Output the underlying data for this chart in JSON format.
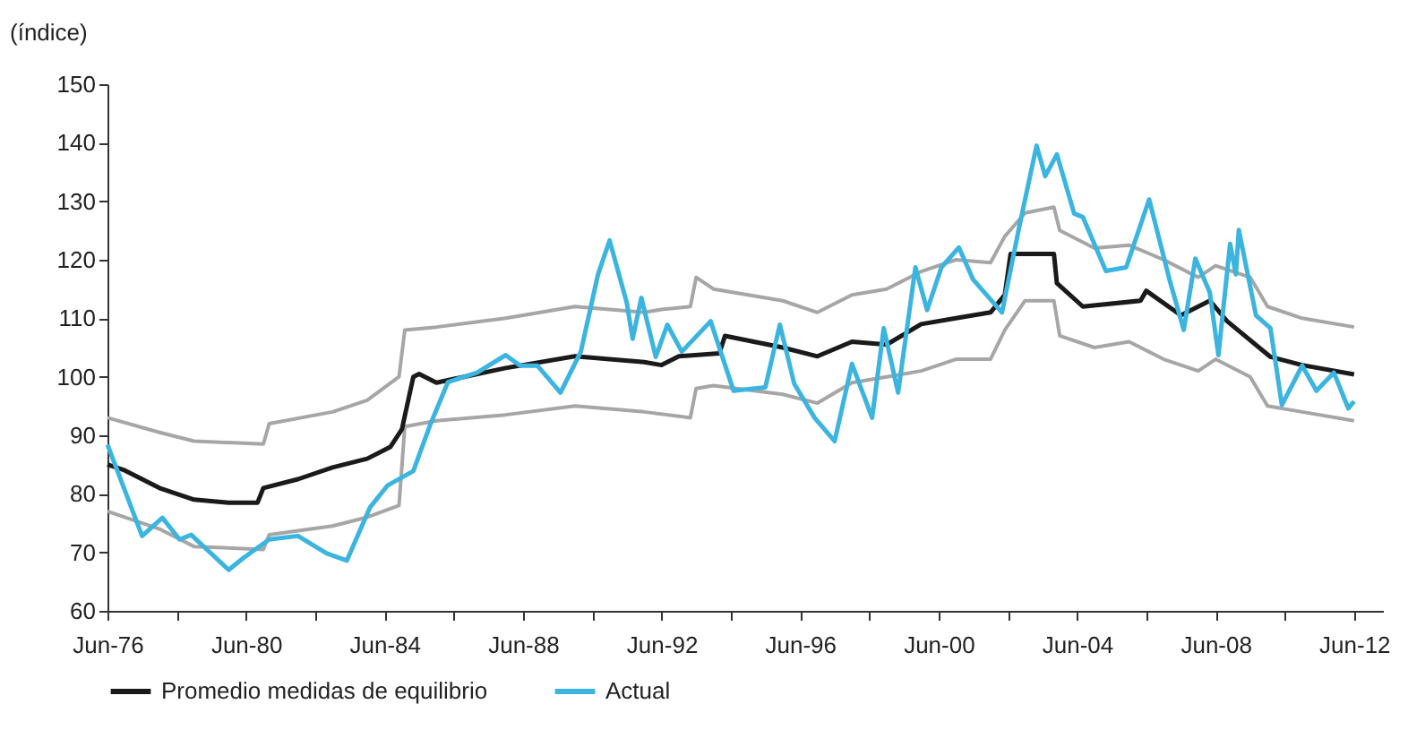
{
  "chart_data": {
    "type": "line",
    "ylabel": "(índice)",
    "xlim": [
      "1976-06",
      "2013-04"
    ],
    "ylim": [
      60,
      150
    ],
    "yticks": [
      60,
      70,
      80,
      90,
      100,
      110,
      120,
      130,
      140,
      150
    ],
    "xticks": [
      {
        "value": "1976-06",
        "label": "Jun-76"
      },
      {
        "value": "1978-06",
        "label": null
      },
      {
        "value": "1980-06",
        "label": "Jun-80"
      },
      {
        "value": "1982-06",
        "label": null
      },
      {
        "value": "1984-06",
        "label": "Jun-84"
      },
      {
        "value": "1986-06",
        "label": null
      },
      {
        "value": "1988-06",
        "label": "Jun-88"
      },
      {
        "value": "1990-06",
        "label": null
      },
      {
        "value": "1992-06",
        "label": "Jun-92"
      },
      {
        "value": "1994-06",
        "label": null
      },
      {
        "value": "1996-06",
        "label": "Jun-96"
      },
      {
        "value": "1998-06",
        "label": null
      },
      {
        "value": "2000-06",
        "label": "Jun-00"
      },
      {
        "value": "2002-06",
        "label": null
      },
      {
        "value": "2004-06",
        "label": "Jun-04"
      },
      {
        "value": "2006-06",
        "label": null
      },
      {
        "value": "2008-06",
        "label": "Jun-08"
      },
      {
        "value": "2010-06",
        "label": null
      },
      {
        "value": "2012-06",
        "label": "Jun-12"
      }
    ],
    "grid": false,
    "legend": "bottom",
    "line_style": "solid",
    "marker": "none",
    "series": [
      {
        "color": "#a6a6a6",
        "x": [
          "1976-06",
          "1977-12",
          "1978-12",
          "1980-12",
          "1981-02",
          "1982-12",
          "1983-12",
          "1984-11",
          "1985-01",
          "1985-12",
          "1987-12",
          "1989-12",
          "1991-12",
          "1992-06",
          "1993-04",
          "1993-06",
          "1993-12",
          "1995-12",
          "1996-12",
          "1997-12",
          "1998-12",
          "1999-12",
          "2000-12",
          "2001-12",
          "2002-05",
          "2002-12",
          "2003-10",
          "2003-12",
          "2004-12",
          "2005-12",
          "2006-12",
          "2007-12",
          "2008-06",
          "2009-06",
          "2009-12",
          "2010-12",
          "2012-06"
        ],
        "values": [
          93,
          90.5,
          89,
          88.5,
          92,
          94,
          96,
          100,
          108,
          108.5,
          110,
          112,
          111,
          111.5,
          112,
          117,
          115,
          113,
          111,
          114,
          115,
          118,
          120,
          119.5,
          124,
          128,
          129,
          125,
          122,
          122.5,
          120,
          117,
          119,
          117,
          112,
          110,
          108.5
        ]
      },
      {
        "color": "#a6a6a6",
        "x": [
          "1976-06",
          "1977-12",
          "1978-12",
          "1980-12",
          "1981-02",
          "1982-12",
          "1983-12",
          "1984-11",
          "1985-01",
          "1985-12",
          "1987-12",
          "1989-12",
          "1991-12",
          "1993-04",
          "1993-06",
          "1993-12",
          "1995-12",
          "1996-12",
          "1997-12",
          "1998-12",
          "1999-12",
          "2000-12",
          "2001-12",
          "2002-05",
          "2002-12",
          "2003-10",
          "2003-12",
          "2004-12",
          "2005-12",
          "2006-12",
          "2007-12",
          "2008-06",
          "2009-06",
          "2009-12",
          "2010-12",
          "2012-06"
        ],
        "values": [
          77,
          74,
          71,
          70.5,
          73,
          74.5,
          76,
          78,
          91.5,
          92.5,
          93.5,
          95,
          94,
          93,
          98,
          98.5,
          97,
          95.5,
          99,
          100,
          101,
          103,
          103,
          108,
          113,
          113,
          107,
          105,
          106,
          103,
          101,
          103,
          100,
          95,
          94,
          92.5
        ]
      },
      {
        "name": "Promedio medidas de equilibrio",
        "color": "#1a1a1a",
        "x": [
          "1976-06",
          "1976-12",
          "1977-12",
          "1978-12",
          "1979-12",
          "1980-10",
          "1980-12",
          "1981-12",
          "1982-12",
          "1983-12",
          "1984-08",
          "1984-12",
          "1985-04",
          "1985-06",
          "1985-12",
          "1987-12",
          "1989-12",
          "1991-12",
          "1992-06",
          "1992-12",
          "1994-02",
          "1994-04",
          "1995-12",
          "1996-12",
          "1997-12",
          "1998-12",
          "1999-12",
          "2000-12",
          "2001-12",
          "2002-05",
          "2002-07",
          "2003-10",
          "2003-11",
          "2004-08",
          "2006-04",
          "2006-06",
          "2007-06",
          "2008-04",
          "2008-10",
          "2010-01",
          "2010-12",
          "2012-06"
        ],
        "values": [
          85,
          84,
          81,
          79,
          78.5,
          78.5,
          81,
          82.5,
          84.5,
          86,
          88,
          91,
          100,
          100.5,
          99,
          101.5,
          103.5,
          102.5,
          102,
          103.5,
          104,
          107,
          105,
          103.5,
          106,
          105.5,
          109,
          110,
          111,
          114,
          121,
          121,
          116,
          112,
          113,
          114.7,
          110.5,
          113,
          109.5,
          103.4,
          102,
          100.4
        ]
      },
      {
        "name": "Actual",
        "color": "#3cb4e0",
        "x": [
          "1976-06",
          "1977-06",
          "1978-01",
          "1978-07",
          "1978-11",
          "1979-12",
          "1980-05",
          "1981-02",
          "1981-12",
          "1982-10",
          "1983-05",
          "1984-01",
          "1984-07",
          "1985-04",
          "1985-10",
          "1986-04",
          "1987-02",
          "1987-12",
          "1988-05",
          "1988-11",
          "1989-07",
          "1990-02",
          "1990-08",
          "1990-12",
          "1991-06",
          "1991-08",
          "1991-11",
          "1992-04",
          "1992-08",
          "1993-01",
          "1993-11",
          "1994-07",
          "1995-06",
          "1995-11",
          "1996-04",
          "1996-11",
          "1997-06",
          "1997-12",
          "1998-07",
          "1998-11",
          "1999-04",
          "1999-10",
          "2000-02",
          "2000-07",
          "2001-01",
          "2001-06",
          "2002-04",
          "2002-10",
          "2003-04",
          "2003-07",
          "2003-11",
          "2004-05",
          "2004-08",
          "2005-04",
          "2005-11",
          "2006-07",
          "2007-02",
          "2007-07",
          "2007-11",
          "2008-04",
          "2008-07",
          "2008-11",
          "2009-01",
          "2009-02",
          "2009-08",
          "2010-01",
          "2010-05",
          "2010-12",
          "2011-05",
          "2011-11",
          "2012-04",
          "2012-06"
        ],
        "values": [
          88.4,
          72.8,
          75.9,
          72.2,
          73,
          67,
          69,
          72.2,
          72.8,
          69.8,
          68.6,
          77.7,
          81.4,
          83.9,
          92,
          99.1,
          100.7,
          103.7,
          101.9,
          101.9,
          97.3,
          104.3,
          117.5,
          123.3,
          112.6,
          106.5,
          113.5,
          103.4,
          108.9,
          104.3,
          109.5,
          97.6,
          98.2,
          108.9,
          98.8,
          93,
          89,
          102.2,
          93,
          108.3,
          97.3,
          118.7,
          111.4,
          118.7,
          122.1,
          116.6,
          111,
          125.7,
          139.5,
          134.3,
          138,
          127.9,
          127.3,
          118.1,
          118.7,
          130.3,
          116.6,
          108,
          120.2,
          114.4,
          103.7,
          122.7,
          117.5,
          125.1,
          110.5,
          108.3,
          95.2,
          101.9,
          97.6,
          100.7,
          94.6,
          95.8
        ]
      }
    ]
  }
}
